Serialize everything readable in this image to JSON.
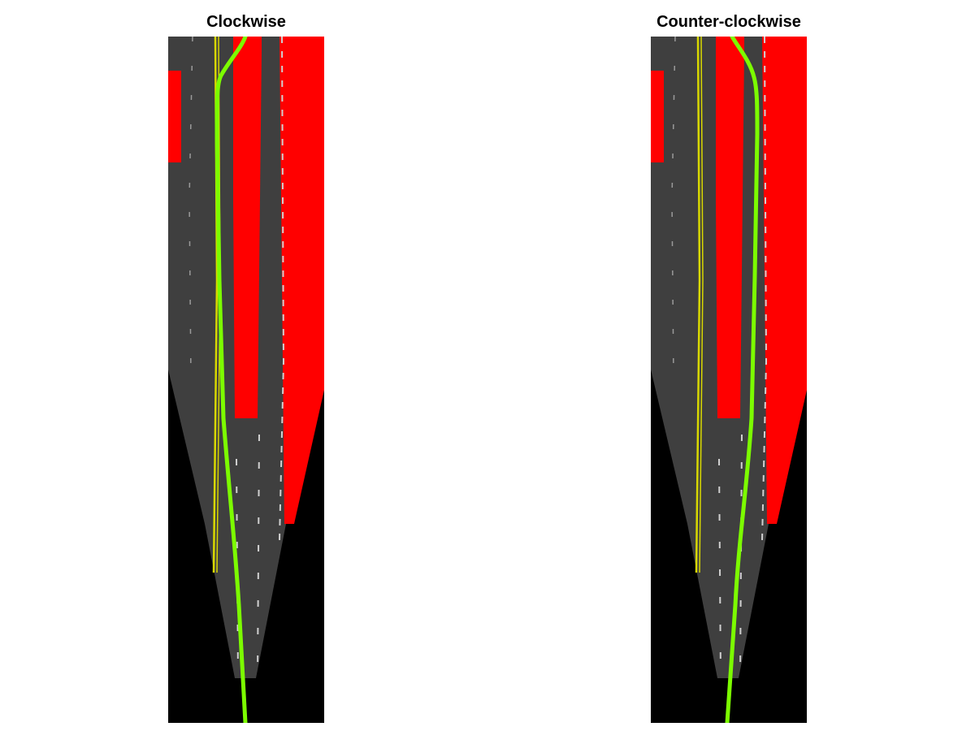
{
  "panels": [
    {
      "id": "left",
      "title": "Clockwise"
    },
    {
      "id": "right",
      "title": "Counter-clockwise"
    }
  ],
  "colors": {
    "background": "#000000",
    "road": "#3f3f3f",
    "obstacle": "#ff0000",
    "path": "#7cfc00",
    "center_line": "#d8d800",
    "lane_marking": "#d0d0d0"
  }
}
